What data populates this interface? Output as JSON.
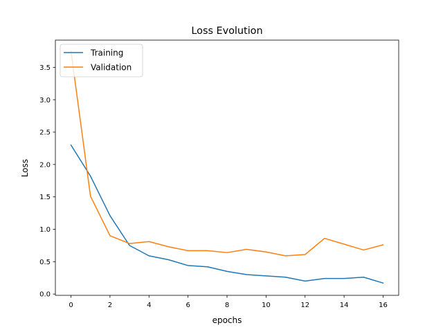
{
  "chart_data": {
    "type": "line",
    "title": "Loss Evolution",
    "xlabel": "epochs",
    "ylabel": "Loss",
    "xlim": [
      -0.8,
      16.8
    ],
    "ylim": [
      -0.02,
      3.92
    ],
    "xticks": [
      0,
      2,
      4,
      6,
      8,
      10,
      12,
      14,
      16
    ],
    "xtick_labels": [
      "0",
      "2",
      "4",
      "6",
      "8",
      "10",
      "12",
      "14",
      "16"
    ],
    "yticks": [
      0.0,
      0.5,
      1.0,
      1.5,
      2.0,
      2.5,
      3.0,
      3.5
    ],
    "ytick_labels": [
      "0.0",
      "0.5",
      "1.0",
      "1.5",
      "2.0",
      "2.5",
      "3.0",
      "3.5"
    ],
    "grid": false,
    "legend_position": "top-left",
    "x": [
      0,
      1,
      2,
      3,
      4,
      5,
      6,
      7,
      8,
      9,
      10,
      11,
      12,
      13,
      14,
      15,
      16
    ],
    "series": [
      {
        "name": "Training",
        "color": "#1f77b4",
        "values": [
          2.3,
          1.82,
          1.21,
          0.75,
          0.59,
          0.53,
          0.44,
          0.42,
          0.35,
          0.3,
          0.28,
          0.26,
          0.2,
          0.24,
          0.24,
          0.26,
          0.17
        ]
      },
      {
        "name": "Validation",
        "color": "#ff7f0e",
        "values": [
          3.75,
          1.51,
          0.9,
          0.78,
          0.81,
          0.73,
          0.67,
          0.67,
          0.64,
          0.69,
          0.65,
          0.59,
          0.61,
          0.86,
          0.77,
          0.68,
          0.76
        ]
      }
    ]
  }
}
